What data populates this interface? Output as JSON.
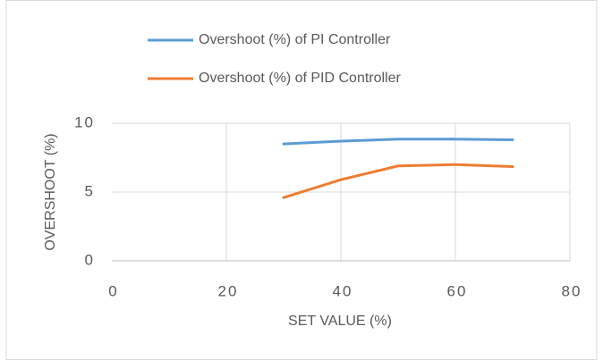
{
  "chart_data": {
    "type": "line",
    "x_label": "SET VALUE (%)",
    "y_label": "OVERSHOOT (%)",
    "x": [
      30,
      40,
      50,
      60,
      70
    ],
    "series": [
      {
        "name": "Overshoot (%) of PI Controller",
        "color": "#5b9bd5",
        "values": [
          8.5,
          8.7,
          8.85,
          8.85,
          8.8
        ]
      },
      {
        "name": "Overshoot (%) of PID Controller",
        "color": "#ed7d31",
        "values": [
          4.6,
          5.9,
          6.9,
          7.0,
          6.85
        ]
      }
    ],
    "xlim": [
      0,
      80
    ],
    "xticks": [
      0,
      20,
      40,
      60,
      80
    ],
    "ylim": [
      0,
      10
    ],
    "yticks": [
      0,
      5,
      10
    ],
    "grid": true,
    "legend": "top"
  }
}
